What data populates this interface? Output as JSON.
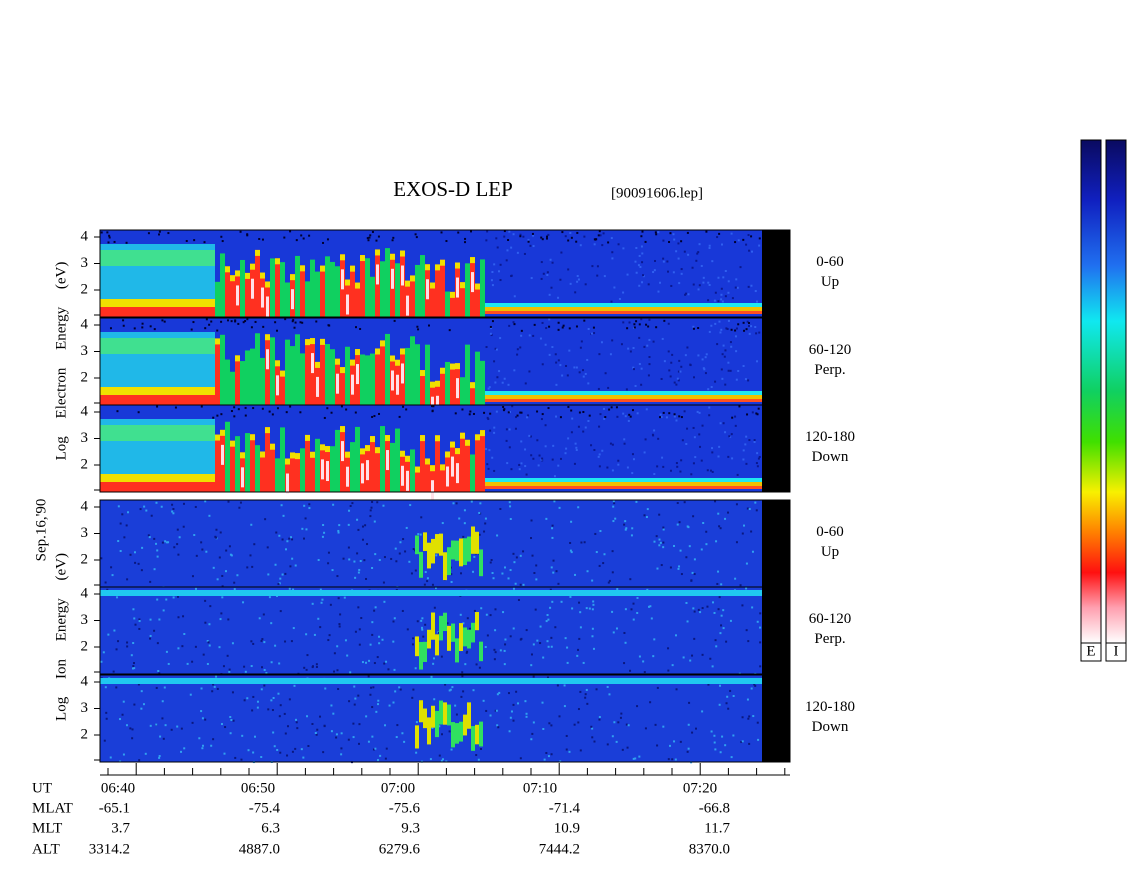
{
  "title": "EXOS-D LEP",
  "file": "[90091606.lep]",
  "date": "Sep.16,'90",
  "groups": [
    {
      "label": "Log Electron Energy (eV)",
      "panels": [
        {
          "range": "0-60",
          "direction": "Up"
        },
        {
          "range": "60-120",
          "direction": "Perp."
        },
        {
          "range": "120-180",
          "direction": "Down"
        }
      ]
    },
    {
      "label": "Log Ion Energy (eV)",
      "panels": [
        {
          "range": "0-60",
          "direction": "Up"
        },
        {
          "range": "60-120",
          "direction": "Perp."
        },
        {
          "range": "120-180",
          "direction": "Down"
        }
      ]
    }
  ],
  "yticks": [
    4,
    3,
    2
  ],
  "orbit": {
    "rows": [
      [
        "UT",
        "06:40",
        "06:50",
        "07:00",
        "07:10",
        "07:20"
      ],
      [
        "MLAT",
        "-65.1",
        "-75.4",
        "-75.6",
        "-71.4",
        "-66.8"
      ],
      [
        "MLT",
        "3.7",
        "6.3",
        "9.3",
        "10.9",
        "11.7"
      ],
      [
        "ALT",
        "3314.2",
        "4887.0",
        "6279.6",
        "7444.2",
        "8370.0"
      ]
    ]
  },
  "colorbars": [
    "E",
    "I"
  ]
}
